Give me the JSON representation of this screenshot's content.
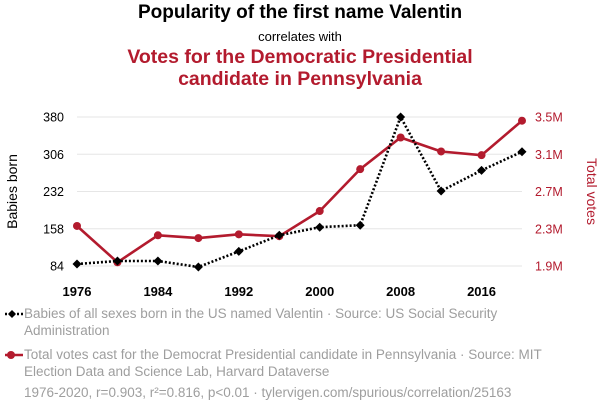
{
  "header": {
    "title": "Popularity of the first name Valentin",
    "subtitle": "correlates with",
    "title2_line1": "Votes for the Democratic Presidential",
    "title2_line2": "candidate in Pennsylvania"
  },
  "colors": {
    "series1": "#000000",
    "series2": "#b31b2e",
    "muted": "#9e9e9e"
  },
  "legend": {
    "series1": "Babies of all sexes born in the US named Valentin · Source: US Social Security Administration",
    "series2": "Total votes cast for the Democrat Presidential candidate in Pennsylvania · Source: MIT Election Data and Science Lab, Harvard Dataverse"
  },
  "footer": "1976-2020, r=0.903, r²=0.816, p<0.01 · tylervigen.com/spurious/correlation/25163",
  "chart_data": {
    "type": "line",
    "title": "Popularity of the first name Valentin",
    "x": [
      1976,
      1980,
      1984,
      1988,
      1992,
      1996,
      2000,
      2004,
      2008,
      2012,
      2016,
      2020
    ],
    "xticks": [
      1976,
      1984,
      1992,
      2000,
      2008,
      2016
    ],
    "xtick_labels": [
      "1976",
      "1984",
      "1992",
      "2000",
      "2008",
      "2016"
    ],
    "xlim": [
      1976,
      2020
    ],
    "series": [
      {
        "name": "Babies born",
        "axis": "left",
        "marker": "diamond",
        "style": "dotted",
        "values": [
          88,
          94,
          94,
          82,
          113,
          145,
          161,
          165,
          380,
          233,
          274,
          311
        ]
      },
      {
        "name": "Total votes",
        "axis": "right",
        "marker": "circle",
        "style": "solid",
        "values": [
          2330000,
          1940000,
          2230000,
          2200000,
          2240000,
          2220000,
          2490000,
          2940000,
          3280000,
          3130000,
          3090000,
          3460000
        ]
      }
    ],
    "y_left": {
      "label": "Babies born",
      "ylim": [
        84,
        380
      ],
      "ticks": [
        84,
        158,
        232,
        306,
        380
      ],
      "tick_labels": [
        "84",
        "158",
        "232",
        "306",
        "380"
      ]
    },
    "y_right": {
      "label": "Total votes",
      "ylim": [
        1900000,
        3500000
      ],
      "ticks": [
        1900000,
        2300000,
        2700000,
        3100000,
        3500000
      ],
      "tick_labels": [
        "1.9M",
        "2.3M",
        "2.7M",
        "3.1M",
        "3.5M"
      ]
    },
    "grid": "horizontal"
  }
}
